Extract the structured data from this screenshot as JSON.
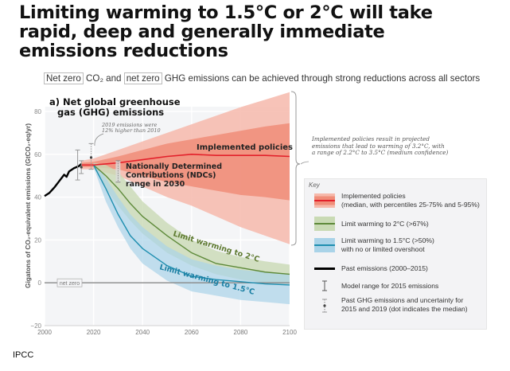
{
  "slide": {
    "title_lines": [
      "Limiting warming to 1.5°C or 2°C will take",
      "rapid, deep and generally immediate",
      "emissions reductions"
    ],
    "subtitle": {
      "part1": "Net zero",
      "part2": " CO₂ and ",
      "part3": "net zero",
      "part4": " GHG emissions can be achieved through strong reductions across all sectors"
    },
    "credit": "IPCC"
  },
  "colors": {
    "implemented_outer": "#f6b9ab",
    "implemented_inner": "#f08d79",
    "implemented_line": "#e3202a",
    "two_c_band": "#c9dab4",
    "two_c_line": "#5e8a3a",
    "one_five_band": "#a9d3e8",
    "one_five_line": "#1f8fb0",
    "past_line": "#000000",
    "netzero_line": "#888888"
  },
  "chart_data": {
    "type": "area",
    "title": "a) Net global greenhouse gas (GHG) emissions",
    "title_lines": [
      "a) Net global greenhouse",
      "gas (GHG) emissions"
    ],
    "xlabel": "",
    "ylabel": "Gigatons of CO₂-equivalent emissions (GtCO₂-eq/yr)",
    "xlim": [
      2000,
      2100
    ],
    "ylim": [
      -20,
      80
    ],
    "x_ticks": [
      "2000",
      "2020",
      "2040",
      "2060",
      "2080",
      "2100"
    ],
    "y_ticks": [
      "80",
      "60",
      "40",
      "20",
      "0",
      "−20"
    ],
    "grid": true,
    "net_zero_label": "net zero",
    "series": [
      {
        "name": "Past emissions (2000–2015)",
        "type": "line",
        "x": [
          2000,
          2002,
          2004,
          2006,
          2008,
          2009,
          2010,
          2012,
          2014,
          2015
        ],
        "y": [
          40.5,
          42,
          44.5,
          47.5,
          50.5,
          49.5,
          52,
          53.5,
          54.5,
          55.5
        ]
      },
      {
        "name": "Implemented policies",
        "type": "band",
        "x": [
          2015,
          2020,
          2030,
          2040,
          2050,
          2060,
          2070,
          2080,
          2090,
          2100
        ],
        "p5": [
          53,
          53,
          50,
          45,
          40,
          36,
          31,
          26,
          22,
          18
        ],
        "p25": [
          54,
          54,
          53,
          50,
          47,
          45,
          43,
          41,
          40,
          38.5
        ],
        "median": [
          55,
          55,
          56,
          57.5,
          59,
          60,
          59.5,
          59.5,
          59.5,
          59
        ],
        "p75": [
          56,
          56.5,
          59,
          62,
          65,
          67,
          69,
          71,
          73,
          74.5
        ],
        "p95": [
          57,
          58,
          62,
          66,
          70,
          74,
          78,
          82,
          85.5,
          89
        ]
      },
      {
        "name": "Limit warming to 2°C (>67%)",
        "type": "band",
        "x": [
          2020,
          2025,
          2030,
          2035,
          2040,
          2050,
          2060,
          2070,
          2080,
          2090,
          2100
        ],
        "low": [
          54,
          44,
          36,
          29,
          23,
          14,
          8,
          4,
          1.5,
          0,
          -1
        ],
        "median": [
          55,
          50,
          44,
          37,
          31,
          22,
          14,
          9,
          7,
          5,
          4
        ],
        "high": [
          56,
          55,
          52,
          45,
          38,
          28,
          20,
          15,
          12,
          10,
          8.5
        ]
      },
      {
        "name": "Limit warming to 1.5°C (>50%)",
        "type": "band",
        "x": [
          2020,
          2025,
          2030,
          2035,
          2040,
          2050,
          2060,
          2070,
          2080,
          2090,
          2100
        ],
        "low": [
          54,
          38,
          26,
          16,
          9,
          1,
          -4,
          -6,
          -8,
          -9,
          -10
        ],
        "median": [
          55,
          44,
          32,
          22,
          16,
          8,
          3,
          1.5,
          0.5,
          -0.5,
          -1
        ],
        "high": [
          56,
          49,
          40,
          32,
          26,
          17,
          11,
          8,
          6,
          5,
          4
        ]
      }
    ],
    "error_bars": [
      {
        "name": "2015 model range",
        "x": 2013.5,
        "low": 48,
        "high": 62,
        "median": 55
      },
      {
        "name": "2015 uncertainty",
        "x": 2015,
        "low": 51,
        "high": 57,
        "median": 54
      },
      {
        "name": "2019 uncertainty",
        "x": 2019,
        "low": 53,
        "high": 65,
        "median": 58.5
      },
      {
        "name": "NDC range 2030",
        "x": 2030,
        "low": 47,
        "high": 57
      }
    ],
    "annotations": {
      "emissions_2019": [
        "2019 emissions were",
        "12% higher than 2010"
      ],
      "ndc": [
        "Nationally Determined",
        "Contributions (NDCs)",
        "range in 2030"
      ],
      "implemented_label": "Implemented policies",
      "two_c_label": "Limit warming to 2°C",
      "one_five_label": "Limit warming to 1.5°C",
      "projection_note": [
        "Implemented policies result in projected",
        "emissions that lead to warming of 3.2°C, with",
        "a range of 2.2°C to 3.5°C (medium confidence)"
      ]
    },
    "legend": {
      "title": "Key",
      "placement": "right",
      "entries": [
        {
          "lines": [
            "Implemented policies",
            "(median, with percentiles 25-75% and 5-95%)"
          ],
          "icon": "red-band-swatch"
        },
        {
          "lines": [
            "Limit warming to 2°C (>67%)"
          ],
          "icon": "green-band-swatch"
        },
        {
          "lines": [
            "Limit warming to 1.5°C (>50%)",
            "with no or limited overshoot"
          ],
          "icon": "blue-band-swatch"
        },
        {
          "lines": [
            "Past emissions (2000–2015)"
          ],
          "icon": "black-line-swatch"
        },
        {
          "lines": [
            "Model range for 2015 emissions"
          ],
          "icon": "i-beam-icon"
        },
        {
          "lines": [
            "Past GHG emissions and uncertainty for",
            "2015 and 2019 (dot indicates the median)"
          ],
          "icon": "dotted-error-bar-icon"
        }
      ]
    }
  }
}
